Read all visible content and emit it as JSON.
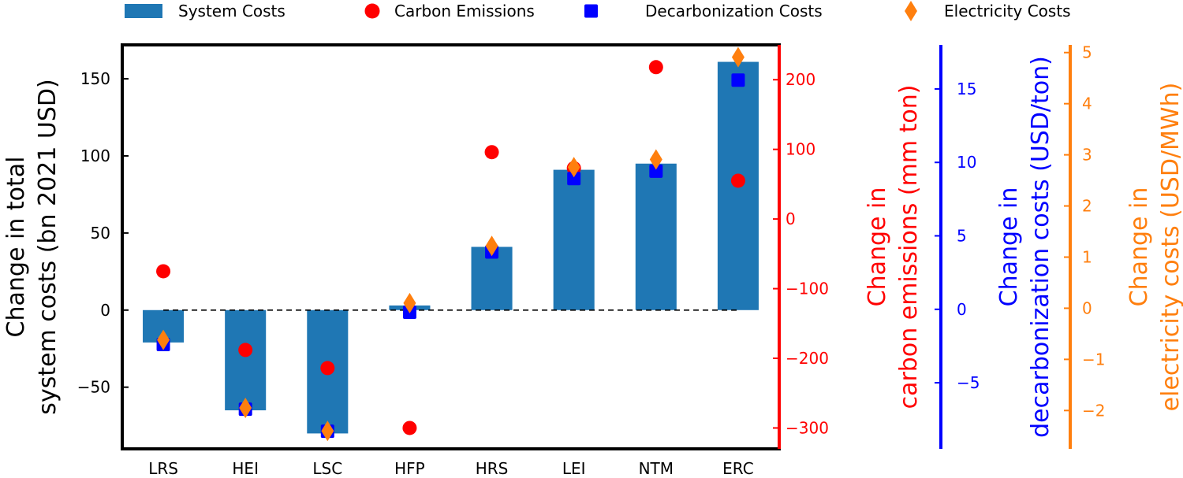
{
  "chart_data": {
    "type": "bar",
    "categories": [
      "LRS",
      "HEI",
      "LSC",
      "HFP",
      "HRS",
      "LEI",
      "NTM",
      "ERC"
    ],
    "legend": {
      "placement": "top",
      "entries": [
        "System Costs",
        "Carbon Emissions",
        "Decarbonization Costs",
        "Electricity Costs"
      ]
    },
    "series": [
      {
        "name": "System Costs",
        "kind": "bar",
        "axis": "left",
        "color": "#1f77b4",
        "values": [
          -21,
          -65,
          -80,
          3,
          41,
          91,
          95,
          161
        ]
      },
      {
        "name": "Carbon Emissions",
        "kind": "point",
        "marker": "circle",
        "axis": "carbon",
        "color": "#ff0000",
        "values": [
          -75,
          -188,
          -214,
          -300,
          96,
          73,
          218,
          55
        ]
      },
      {
        "name": "Decarbonization Costs",
        "kind": "point",
        "marker": "square",
        "axis": "decarb",
        "color": "#0000ff",
        "values": [
          -2.4,
          -6.8,
          -8.3,
          -0.2,
          3.9,
          8.9,
          9.4,
          15.6
        ]
      },
      {
        "name": "Electricity Costs",
        "kind": "point",
        "marker": "diamond",
        "axis": "elec",
        "color": "#ff7f0e",
        "values": [
          -0.62,
          -1.95,
          -2.4,
          0.1,
          1.22,
          2.76,
          2.91,
          4.91
        ]
      }
    ],
    "axes": {
      "left": {
        "label_lines": [
          "Change in total",
          "system costs (bn 2021 USD)"
        ],
        "ylim": [
          -90,
          172
        ],
        "ticks": [
          -50,
          0,
          50,
          100,
          150
        ],
        "color": "#000000"
      },
      "carbon": {
        "label_lines": [
          "Change in",
          "carbon emissions (mm ton)"
        ],
        "ylim": [
          -330,
          250
        ],
        "ticks": [
          -300,
          -200,
          -100,
          0,
          100,
          200
        ],
        "color": "#ff0000"
      },
      "decarb": {
        "label_lines": [
          "Change in",
          "decarbonization costs (USD/ton)"
        ],
        "ylim": [
          -9.5,
          18
        ],
        "ticks": [
          -5,
          0,
          5,
          10,
          15
        ],
        "color": "#0000ff"
      },
      "elec": {
        "label_lines": [
          "Change in",
          "electricity costs (USD/MWh)"
        ],
        "ylim": [
          -2.75,
          5.15
        ],
        "ticks": [
          -2,
          -1,
          0,
          1,
          2,
          3,
          4,
          5
        ],
        "color": "#ff7f0e"
      }
    },
    "zero_line": "dashed",
    "grid": false
  }
}
